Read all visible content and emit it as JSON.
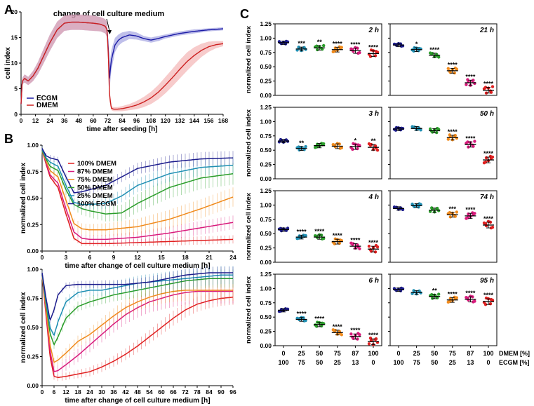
{
  "panel_labels": [
    "A",
    "B",
    "C"
  ],
  "chart_data": [
    {
      "id": "A",
      "type": "line",
      "xlabel": "time after seeding [h]",
      "ylabel": "cell index",
      "xlim": [
        0,
        168
      ],
      "ylim": [
        0,
        20
      ],
      "xticks": [
        0,
        12,
        24,
        36,
        48,
        60,
        72,
        84,
        96,
        108,
        120,
        132,
        144,
        156,
        168
      ],
      "yticks": [
        0,
        5,
        10,
        15,
        20
      ],
      "annotation": "change of cell culture medium",
      "annotation_x": 72,
      "legend": [
        "ECGM",
        "DMEM"
      ],
      "series": [
        {
          "name": "ECGM",
          "color": "#1a1aa6",
          "band": "#8a8ad8",
          "x": [
            0,
            1,
            3,
            6,
            10,
            14,
            18,
            24,
            30,
            36,
            42,
            48,
            54,
            60,
            66,
            70,
            71.5,
            72.5,
            73.5,
            75,
            78,
            81,
            84,
            90,
            96,
            102,
            108,
            114,
            120,
            132,
            144,
            156,
            168
          ],
          "y": [
            2,
            6.5,
            7,
            6.5,
            7.5,
            9,
            11,
            14,
            16.5,
            17.8,
            18,
            18,
            17.9,
            17.8,
            17.6,
            17.2,
            16.5,
            13,
            7,
            10.5,
            13.5,
            14.5,
            15,
            15.5,
            15.3,
            14.8,
            14.5,
            14.8,
            15.2,
            15.8,
            16.2,
            16.5,
            16.7
          ],
          "err": [
            0.5,
            0.6,
            0.8,
            0.8,
            1,
            1.2,
            1.4,
            1.6,
            1.6,
            1.5,
            1.5,
            1.5,
            1.5,
            1.5,
            1.4,
            1.4,
            1.4,
            2,
            2.5,
            2,
            1.4,
            1.1,
            1,
            0.8,
            0.7,
            0.5,
            0.5,
            0.5,
            0.4,
            0.4,
            0.4,
            0.3,
            0.3
          ]
        },
        {
          "name": "DMEM",
          "color": "#cc1f1f",
          "band": "#f0a0a0",
          "x": [
            0,
            1,
            3,
            6,
            10,
            14,
            18,
            24,
            30,
            36,
            42,
            48,
            54,
            60,
            66,
            70,
            71.5,
            72.5,
            73.5,
            75,
            77,
            80,
            84,
            90,
            96,
            102,
            108,
            114,
            120,
            126,
            132,
            138,
            144,
            150,
            156,
            162,
            168
          ],
          "y": [
            2,
            6.5,
            7,
            6.5,
            7.5,
            9,
            11,
            14,
            16.5,
            17.8,
            18,
            18,
            17.9,
            17.8,
            17.6,
            17.2,
            16.5,
            12,
            4,
            1.2,
            1,
            1,
            1.1,
            1.4,
            1.8,
            2.4,
            3.2,
            4.3,
            5.7,
            7.2,
            8.8,
            10.3,
            11.5,
            12.5,
            13.2,
            13.6,
            13.8
          ],
          "err": [
            0.5,
            0.6,
            0.8,
            0.8,
            1,
            1.2,
            1.4,
            1.6,
            1.6,
            1.5,
            1.5,
            1.5,
            1.5,
            1.5,
            1.4,
            1.4,
            1.4,
            2,
            1.5,
            0.4,
            0.4,
            0.4,
            0.5,
            0.6,
            0.8,
            1,
            1.2,
            1.4,
            1.6,
            1.7,
            1.8,
            1.8,
            1.6,
            1.3,
            1,
            0.7,
            0.5
          ]
        }
      ]
    },
    {
      "id": "B-top",
      "type": "line",
      "xlabel": "time after change of cell culture medium [h]",
      "ylabel": "normalized cell index",
      "xlim": [
        0,
        24
      ],
      "ylim": [
        0,
        1
      ],
      "xticks": [
        0,
        3,
        6,
        9,
        12,
        15,
        18,
        21,
        24
      ],
      "yticks": [
        0.0,
        0.25,
        0.5,
        0.75,
        1.0
      ],
      "legend": [
        "100% DMEM",
        "87% DMEM",
        "75% DMEM",
        "50% DMEM",
        "25% DMEM",
        "100% ECGM"
      ],
      "series": [
        {
          "name": "100% DMEM",
          "color": "#e02020",
          "x": [
            0,
            0.5,
            1,
            2,
            3,
            4,
            5,
            6,
            8,
            12,
            16,
            20,
            24
          ],
          "y": [
            0.95,
            0.82,
            0.7,
            0.6,
            0.35,
            0.12,
            0.07,
            0.07,
            0.07,
            0.08,
            0.09,
            0.1,
            0.11
          ],
          "err": 0.03
        },
        {
          "name": "87% DMEM",
          "color": "#d81b7c",
          "x": [
            0,
            0.5,
            1,
            2,
            3,
            4,
            5,
            6,
            8,
            12,
            16,
            20,
            24
          ],
          "y": [
            0.95,
            0.83,
            0.72,
            0.64,
            0.4,
            0.18,
            0.12,
            0.11,
            0.11,
            0.13,
            0.17,
            0.22,
            0.27
          ],
          "err": 0.05
        },
        {
          "name": "75% DMEM",
          "color": "#f08a1c",
          "x": [
            0,
            0.5,
            1,
            2,
            3,
            4,
            5,
            6,
            8,
            12,
            16,
            20,
            24
          ],
          "y": [
            0.95,
            0.85,
            0.76,
            0.7,
            0.48,
            0.26,
            0.21,
            0.2,
            0.2,
            0.23,
            0.3,
            0.4,
            0.51
          ],
          "err": 0.07
        },
        {
          "name": "50% DMEM",
          "color": "#2a9d2a",
          "x": [
            0,
            0.5,
            1,
            2,
            3,
            4,
            5,
            6,
            8,
            10,
            12,
            16,
            20,
            24
          ],
          "y": [
            0.95,
            0.87,
            0.8,
            0.76,
            0.58,
            0.44,
            0.4,
            0.38,
            0.35,
            0.36,
            0.45,
            0.6,
            0.69,
            0.73
          ],
          "err": 0.08
        },
        {
          "name": "25% DMEM",
          "color": "#1f8fb3",
          "x": [
            0,
            0.5,
            1,
            2,
            3,
            4,
            5,
            6,
            8,
            10,
            12,
            16,
            20,
            24
          ],
          "y": [
            0.96,
            0.88,
            0.84,
            0.8,
            0.62,
            0.46,
            0.44,
            0.44,
            0.45,
            0.52,
            0.62,
            0.73,
            0.79,
            0.81
          ],
          "err": 0.06
        },
        {
          "name": "100% ECGM",
          "color": "#1c1c8c",
          "x": [
            0,
            0.5,
            1,
            2,
            3,
            4,
            5,
            6,
            8,
            10,
            12,
            16,
            20,
            24
          ],
          "y": [
            0.97,
            0.9,
            0.88,
            0.86,
            0.7,
            0.55,
            0.56,
            0.58,
            0.62,
            0.7,
            0.78,
            0.84,
            0.87,
            0.88
          ],
          "err": 0.05
        }
      ]
    },
    {
      "id": "B-bottom",
      "type": "line",
      "xlabel": "time after change of cell culture medium [h]",
      "ylabel": "normalized cell index",
      "xlim": [
        0,
        96
      ],
      "ylim": [
        0,
        1
      ],
      "xticks": [
        0,
        6,
        12,
        18,
        24,
        30,
        36,
        42,
        48,
        54,
        60,
        66,
        72,
        78,
        84,
        90,
        96
      ],
      "yticks": [
        0.0,
        0.25,
        0.5,
        0.75,
        1.0
      ],
      "series": [
        {
          "name": "100% DMEM",
          "color": "#e02020",
          "x": [
            0,
            2,
            4,
            6,
            8,
            12,
            18,
            24,
            30,
            36,
            42,
            48,
            54,
            60,
            66,
            72,
            78,
            84,
            90,
            96
          ],
          "y": [
            0.95,
            0.6,
            0.25,
            0.08,
            0.07,
            0.08,
            0.1,
            0.12,
            0.16,
            0.21,
            0.27,
            0.34,
            0.42,
            0.5,
            0.58,
            0.65,
            0.7,
            0.73,
            0.75,
            0.76
          ],
          "err": 0.05
        },
        {
          "name": "87% DMEM",
          "color": "#d81b7c",
          "x": [
            0,
            2,
            4,
            6,
            8,
            12,
            18,
            24,
            30,
            36,
            42,
            48,
            54,
            60,
            66,
            72,
            78,
            84,
            90,
            96
          ],
          "y": [
            0.95,
            0.62,
            0.3,
            0.12,
            0.13,
            0.18,
            0.26,
            0.35,
            0.44,
            0.53,
            0.61,
            0.67,
            0.72,
            0.75,
            0.78,
            0.8,
            0.81,
            0.81,
            0.81,
            0.81
          ],
          "err": 0.08
        },
        {
          "name": "75% DMEM",
          "color": "#f08a1c",
          "x": [
            0,
            2,
            4,
            6,
            8,
            12,
            18,
            24,
            30,
            36,
            42,
            48,
            54,
            60,
            66,
            72,
            78,
            84,
            90,
            96
          ],
          "y": [
            0.95,
            0.65,
            0.35,
            0.2,
            0.22,
            0.28,
            0.38,
            0.44,
            0.52,
            0.6,
            0.67,
            0.72,
            0.76,
            0.79,
            0.81,
            0.82,
            0.82,
            0.82,
            0.82,
            0.82
          ],
          "err": 0.07
        },
        {
          "name": "50% DMEM",
          "color": "#2a9d2a",
          "x": [
            0,
            2,
            4,
            6,
            8,
            12,
            18,
            24,
            30,
            36,
            42,
            48,
            54,
            60,
            66,
            72,
            78,
            84,
            90,
            96
          ],
          "y": [
            0.96,
            0.7,
            0.45,
            0.35,
            0.42,
            0.58,
            0.68,
            0.72,
            0.75,
            0.78,
            0.8,
            0.82,
            0.84,
            0.86,
            0.88,
            0.9,
            0.91,
            0.92,
            0.92,
            0.92
          ],
          "err": 0.06
        },
        {
          "name": "25% DMEM",
          "color": "#1f8fb3",
          "x": [
            0,
            2,
            4,
            6,
            8,
            12,
            18,
            24,
            30,
            36,
            42,
            48,
            54,
            60,
            66,
            72,
            78,
            84,
            90,
            96
          ],
          "y": [
            0.96,
            0.72,
            0.5,
            0.43,
            0.55,
            0.72,
            0.8,
            0.82,
            0.82,
            0.84,
            0.86,
            0.88,
            0.89,
            0.9,
            0.91,
            0.92,
            0.93,
            0.94,
            0.95,
            0.95
          ],
          "err": 0.06
        },
        {
          "name": "100% ECGM",
          "color": "#1c1c8c",
          "x": [
            0,
            2,
            4,
            6,
            8,
            12,
            18,
            24,
            30,
            36,
            42,
            48,
            54,
            60,
            66,
            72,
            78,
            84,
            90,
            96
          ],
          "y": [
            0.97,
            0.75,
            0.56,
            0.65,
            0.78,
            0.86,
            0.87,
            0.87,
            0.87,
            0.87,
            0.87,
            0.88,
            0.89,
            0.91,
            0.93,
            0.95,
            0.96,
            0.97,
            0.97,
            0.97
          ],
          "err": 0.04
        }
      ]
    },
    {
      "id": "C",
      "type": "scatter",
      "ylabel": "normalized cell index",
      "ylim": [
        0,
        1.25
      ],
      "yticks": [
        "0.00",
        "0.25",
        "0.50",
        "0.75",
        "1.00",
        "1.25"
      ],
      "xrow1_label": "DMEM [%]",
      "xrow2_label": "ECGM [%]",
      "dmem_pct": [
        "0",
        "25",
        "50",
        "75",
        "87",
        "100"
      ],
      "ecgm_pct": [
        "100",
        "75",
        "50",
        "25",
        "13",
        "0"
      ],
      "group_colors": [
        "#1c1c8c",
        "#1f8fb3",
        "#2a9d2a",
        "#f08a1c",
        "#d81b7c",
        "#e02020"
      ],
      "panels": [
        {
          "time": "2 h",
          "col": 0,
          "row": 0,
          "means": [
            0.92,
            0.81,
            0.83,
            0.8,
            0.78,
            0.73
          ],
          "sig": [
            "",
            "***",
            "**",
            "****",
            "****",
            "****"
          ]
        },
        {
          "time": "3 h",
          "col": 0,
          "row": 1,
          "means": [
            0.66,
            0.53,
            0.58,
            0.57,
            0.56,
            0.55
          ],
          "sig": [
            "",
            "**",
            "",
            "",
            "*",
            "**"
          ]
        },
        {
          "time": "4 h",
          "col": 0,
          "row": 2,
          "means": [
            0.57,
            0.44,
            0.44,
            0.36,
            0.28,
            0.23
          ],
          "sig": [
            "",
            "****",
            "****",
            "****",
            "****",
            "****"
          ]
        },
        {
          "time": "6 h",
          "col": 0,
          "row": 3,
          "means": [
            0.62,
            0.46,
            0.37,
            0.23,
            0.16,
            0.07
          ],
          "sig": [
            "",
            "****",
            "****",
            "****",
            "****",
            "****"
          ]
        },
        {
          "time": "21 h",
          "col": 1,
          "row": 0,
          "means": [
            0.88,
            0.8,
            0.7,
            0.43,
            0.22,
            0.09
          ],
          "sig": [
            "",
            "*",
            "****",
            "****",
            "****",
            "****"
          ]
        },
        {
          "time": "50 h",
          "col": 1,
          "row": 1,
          "means": [
            0.87,
            0.88,
            0.84,
            0.72,
            0.6,
            0.33
          ],
          "sig": [
            "",
            "",
            "",
            "****",
            "****",
            "****"
          ]
        },
        {
          "time": "74 h",
          "col": 1,
          "row": 2,
          "means": [
            0.94,
            0.99,
            0.91,
            0.83,
            0.81,
            0.65
          ],
          "sig": [
            "",
            "",
            "",
            "***",
            "****",
            "****"
          ]
        },
        {
          "time": "95 h",
          "col": 1,
          "row": 3,
          "means": [
            0.98,
            0.93,
            0.86,
            0.8,
            0.81,
            0.77
          ],
          "sig": [
            "",
            "",
            "**",
            "****",
            "****",
            "****"
          ]
        }
      ]
    }
  ]
}
